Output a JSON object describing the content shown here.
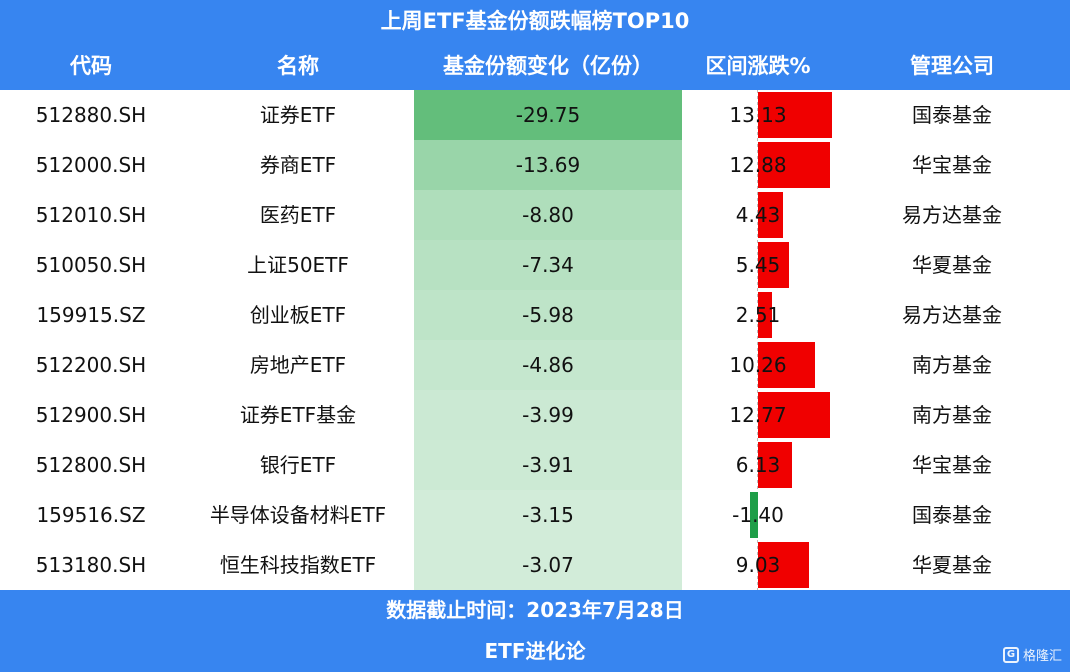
{
  "title": "上周ETF基金份额跌幅榜TOP10",
  "columns": {
    "code": "代码",
    "name": "名称",
    "share_change": "基金份额变化（亿份）",
    "range_change": "区间涨跌%",
    "company": "管理公司"
  },
  "colors": {
    "header_bg": "#3785F0",
    "positive_bar": "#F00000",
    "negative_bar": "#1E9E48",
    "heat_strong": "#63BE7B",
    "heat_weak": "#FFFFFF"
  },
  "chart_data": {
    "type": "table",
    "rows": [
      {
        "code": "512880.SH",
        "name": "证券ETF",
        "share_change": -29.75,
        "range_change": 13.13,
        "company": "国泰基金"
      },
      {
        "code": "512000.SH",
        "name": "券商ETF",
        "share_change": -13.69,
        "range_change": 12.88,
        "company": "华宝基金"
      },
      {
        "code": "512010.SH",
        "name": "医药ETF",
        "share_change": -8.8,
        "range_change": 4.43,
        "company": "易方达基金"
      },
      {
        "code": "510050.SH",
        "name": "上证50ETF",
        "share_change": -7.34,
        "range_change": 5.45,
        "company": "华夏基金"
      },
      {
        "code": "159915.SZ",
        "name": "创业板ETF",
        "share_change": -5.98,
        "range_change": 2.51,
        "company": "易方达基金"
      },
      {
        "code": "512200.SH",
        "name": "房地产ETF",
        "share_change": -4.86,
        "range_change": 10.26,
        "company": "南方基金"
      },
      {
        "code": "512900.SH",
        "name": "证券ETF基金",
        "share_change": -3.99,
        "range_change": 12.77,
        "company": "南方基金"
      },
      {
        "code": "512800.SH",
        "name": "银行ETF",
        "share_change": -3.91,
        "range_change": 6.13,
        "company": "华宝基金"
      },
      {
        "code": "159516.SZ",
        "name": "半导体设备材料ETF",
        "share_change": -3.15,
        "range_change": -1.4,
        "company": "国泰基金"
      },
      {
        "code": "513180.SH",
        "name": "恒生科技指数ETF",
        "share_change": -3.07,
        "range_change": 9.03,
        "company": "华夏基金"
      }
    ]
  },
  "footer": {
    "date_note": "数据截止时间：2023年7月28日",
    "source": "ETF进化论"
  },
  "watermark": {
    "icon": "G",
    "text": "格隆汇"
  }
}
